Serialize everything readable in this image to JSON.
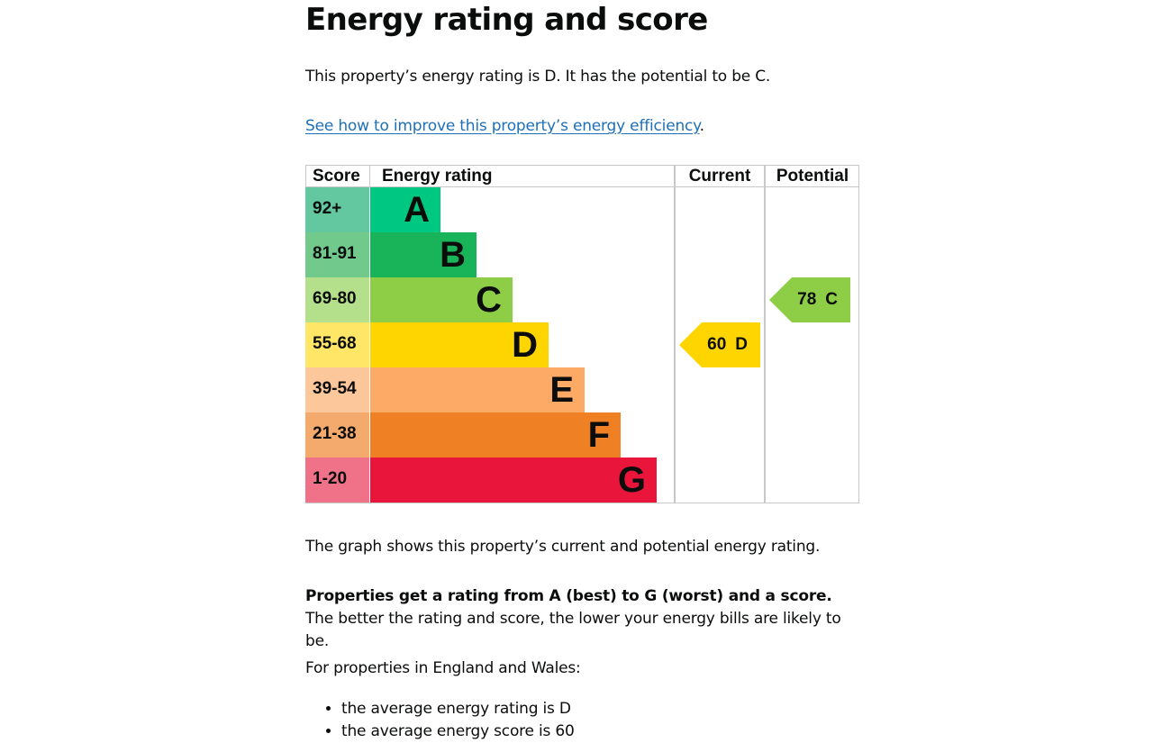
{
  "page": {
    "title": "Energy rating and score",
    "intro": "This property’s energy rating is D. It has the potential to be C.",
    "improve_link": "See how to improve this property’s energy efficiency",
    "improve_suffix": ".",
    "graph_caption": "The graph shows this property’s current and potential energy rating.",
    "rating_bold": "Properties get a rating from A (best) to G (worst) and a score.",
    "rating_rest": " The better the rating and score, the lower your energy bills are likely to be.",
    "region_intro": "For properties in England and Wales:",
    "bullets": [
      "the average energy rating is D",
      "the average energy score is 60"
    ]
  },
  "chart_data": {
    "type": "table",
    "headers": {
      "score": "Score",
      "rating": "Energy rating",
      "current": "Current",
      "potential": "Potential"
    },
    "bands": [
      {
        "range": "92+",
        "letter": "A",
        "color": "#00c781",
        "score_color": "#63c7a0"
      },
      {
        "range": "81-91",
        "letter": "B",
        "color": "#19b459",
        "score_color": "#71ca8c"
      },
      {
        "range": "69-80",
        "letter": "C",
        "color": "#8dce46",
        "score_color": "#b5e08b"
      },
      {
        "range": "55-68",
        "letter": "D",
        "color": "#ffd500",
        "score_color": "#ffe666"
      },
      {
        "range": "39-54",
        "letter": "E",
        "color": "#fcaa65",
        "score_color": "#fdc79c"
      },
      {
        "range": "21-38",
        "letter": "F",
        "color": "#ef8023",
        "score_color": "#f4a96d"
      },
      {
        "range": "1-20",
        "letter": "G",
        "color": "#e9153b",
        "score_color": "#f07289"
      }
    ],
    "current": {
      "score": 60,
      "rating": "D",
      "label_score": "60",
      "label_rating": "D",
      "color": "#ffd500"
    },
    "potential": {
      "score": 78,
      "rating": "C",
      "label_score": "78",
      "label_rating": "C",
      "color": "#8dce46"
    }
  }
}
